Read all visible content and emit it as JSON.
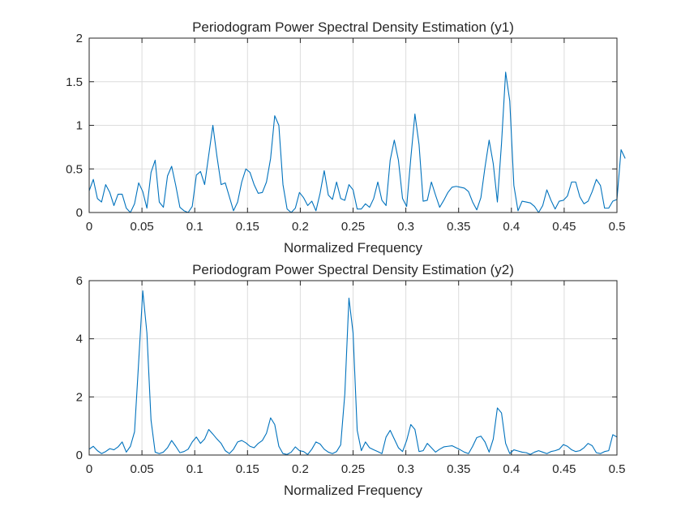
{
  "chart_data": [
    {
      "type": "line",
      "title": "Periodogram Power Spectral Density Estimation (y1)",
      "xlabel": "Normalized Frequency",
      "ylabel": "",
      "xlim": [
        0,
        0.5
      ],
      "ylim": [
        0,
        2
      ],
      "xticks": [
        "0",
        "0.05",
        "0.1",
        "0.15",
        "0.2",
        "0.25",
        "0.3",
        "0.35",
        "0.4",
        "0.45",
        "0.5"
      ],
      "yticks": [
        "0",
        "0.5",
        "1",
        "1.5",
        "2"
      ],
      "grid": true,
      "line_color": "#0072bd",
      "x_step": 0.00390625,
      "series": [
        {
          "values": [
            0.25,
            0.38,
            0.16,
            0.12,
            0.32,
            0.23,
            0.08,
            0.21,
            0.21,
            0.05,
            0.0,
            0.1,
            0.34,
            0.24,
            0.05,
            0.46,
            0.6,
            0.12,
            0.06,
            0.42,
            0.53,
            0.31,
            0.06,
            0.02,
            0.0,
            0.07,
            0.43,
            0.47,
            0.32,
            0.66,
            1.0,
            0.64,
            0.32,
            0.34,
            0.18,
            0.02,
            0.12,
            0.35,
            0.5,
            0.46,
            0.32,
            0.22,
            0.23,
            0.35,
            0.62,
            1.11,
            1.0,
            0.32,
            0.04,
            0.0,
            0.05,
            0.23,
            0.17,
            0.08,
            0.13,
            0.02,
            0.22,
            0.48,
            0.2,
            0.15,
            0.35,
            0.16,
            0.14,
            0.32,
            0.26,
            0.04,
            0.04,
            0.1,
            0.06,
            0.16,
            0.35,
            0.14,
            0.08,
            0.6,
            0.83,
            0.6,
            0.16,
            0.07,
            0.62,
            1.13,
            0.78,
            0.13,
            0.14,
            0.35,
            0.2,
            0.06,
            0.14,
            0.23,
            0.29,
            0.3,
            0.29,
            0.28,
            0.24,
            0.12,
            0.03,
            0.17,
            0.52,
            0.83,
            0.56,
            0.12,
            0.79,
            1.61,
            1.28,
            0.31,
            0.02,
            0.13,
            0.12,
            0.11,
            0.07,
            0.0,
            0.08,
            0.26,
            0.14,
            0.04,
            0.13,
            0.14,
            0.19,
            0.35,
            0.35,
            0.18,
            0.1,
            0.13,
            0.24,
            0.38,
            0.31,
            0.05,
            0.05,
            0.13,
            0.15,
            0.72,
            0.62
          ]
        }
      ]
    },
    {
      "type": "line",
      "title": "Periodogram Power Spectral Density Estimation (y2)",
      "xlabel": "Normalized Frequency",
      "ylabel": "",
      "xlim": [
        0,
        0.5
      ],
      "ylim": [
        0,
        6
      ],
      "xticks": [
        "0",
        "0.05",
        "0.1",
        "0.15",
        "0.2",
        "0.25",
        "0.3",
        "0.35",
        "0.4",
        "0.45",
        "0.5"
      ],
      "yticks": [
        "0",
        "2",
        "4",
        "6"
      ],
      "grid": true,
      "line_color": "#0072bd",
      "x_step": 0.00390625,
      "series": [
        {
          "values": [
            0.2,
            0.3,
            0.15,
            0.05,
            0.12,
            0.22,
            0.18,
            0.28,
            0.45,
            0.1,
            0.3,
            0.8,
            3.2,
            5.65,
            4.2,
            1.2,
            0.1,
            0.05,
            0.1,
            0.25,
            0.5,
            0.3,
            0.08,
            0.12,
            0.2,
            0.45,
            0.62,
            0.4,
            0.55,
            0.88,
            0.72,
            0.55,
            0.4,
            0.15,
            0.05,
            0.2,
            0.45,
            0.5,
            0.42,
            0.3,
            0.25,
            0.4,
            0.5,
            0.75,
            1.28,
            1.05,
            0.3,
            0.05,
            0.02,
            0.1,
            0.28,
            0.15,
            0.12,
            0.02,
            0.2,
            0.45,
            0.38,
            0.2,
            0.1,
            0.05,
            0.12,
            0.35,
            2.1,
            5.4,
            4.2,
            0.85,
            0.15,
            0.45,
            0.25,
            0.18,
            0.12,
            0.05,
            0.62,
            0.85,
            0.55,
            0.25,
            0.12,
            0.5,
            1.05,
            0.88,
            0.12,
            0.15,
            0.4,
            0.25,
            0.1,
            0.2,
            0.28,
            0.3,
            0.32,
            0.25,
            0.18,
            0.1,
            0.05,
            0.3,
            0.6,
            0.65,
            0.45,
            0.1,
            0.55,
            1.62,
            1.45,
            0.4,
            0.05,
            0.18,
            0.14,
            0.1,
            0.08,
            0.02,
            0.1,
            0.15,
            0.1,
            0.05,
            0.12,
            0.15,
            0.2,
            0.36,
            0.3,
            0.18,
            0.12,
            0.15,
            0.25,
            0.4,
            0.32,
            0.08,
            0.05,
            0.12,
            0.15,
            0.7,
            0.62
          ]
        }
      ]
    }
  ]
}
